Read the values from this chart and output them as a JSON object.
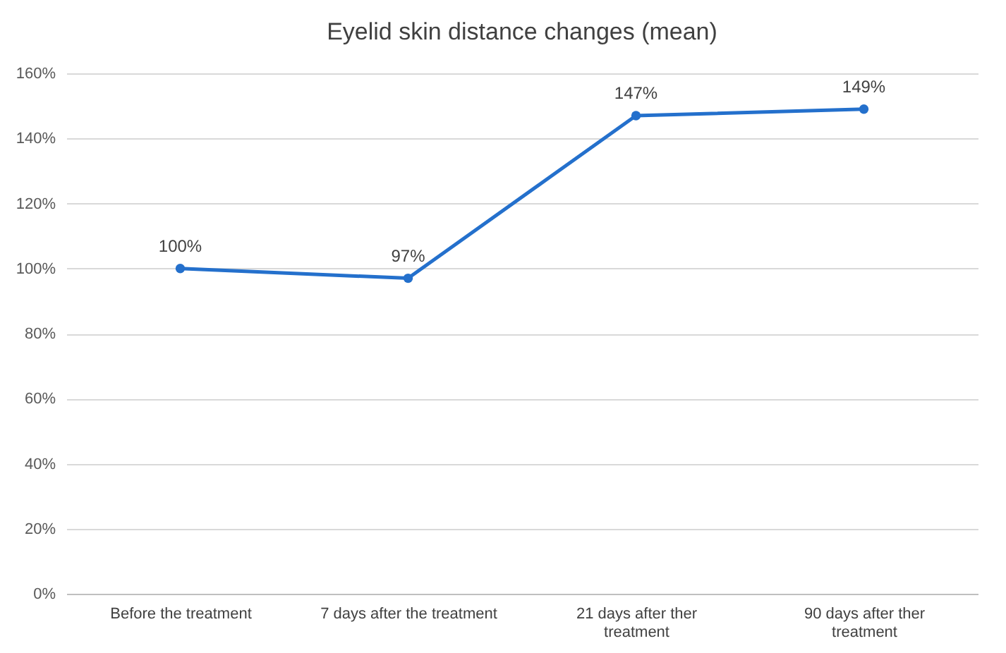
{
  "chart_data": {
    "type": "line",
    "title": "Eyelid skin distance changes (mean)",
    "categories": [
      "Before the treatment",
      "7 days after the treatment",
      "21 days after ther treatment",
      "90 days after ther treatment"
    ],
    "series": [
      {
        "color": "#2470cc",
        "values": [
          100,
          97,
          147,
          149
        ],
        "value_labels": [
          "100%",
          "97%",
          "147%",
          "149%"
        ]
      }
    ],
    "ylim": [
      0,
      160
    ],
    "yticks": [
      {
        "value": 0,
        "label": "0%"
      },
      {
        "value": 20,
        "label": "20%"
      },
      {
        "value": 40,
        "label": "40%"
      },
      {
        "value": 60,
        "label": "60%"
      },
      {
        "value": 80,
        "label": "80%"
      },
      {
        "value": 100,
        "label": "100%"
      },
      {
        "value": 120,
        "label": "120%"
      },
      {
        "value": 140,
        "label": "140%"
      },
      {
        "value": 160,
        "label": "160%"
      }
    ],
    "grid": "y",
    "marker": "circle",
    "line_style": "solid"
  }
}
